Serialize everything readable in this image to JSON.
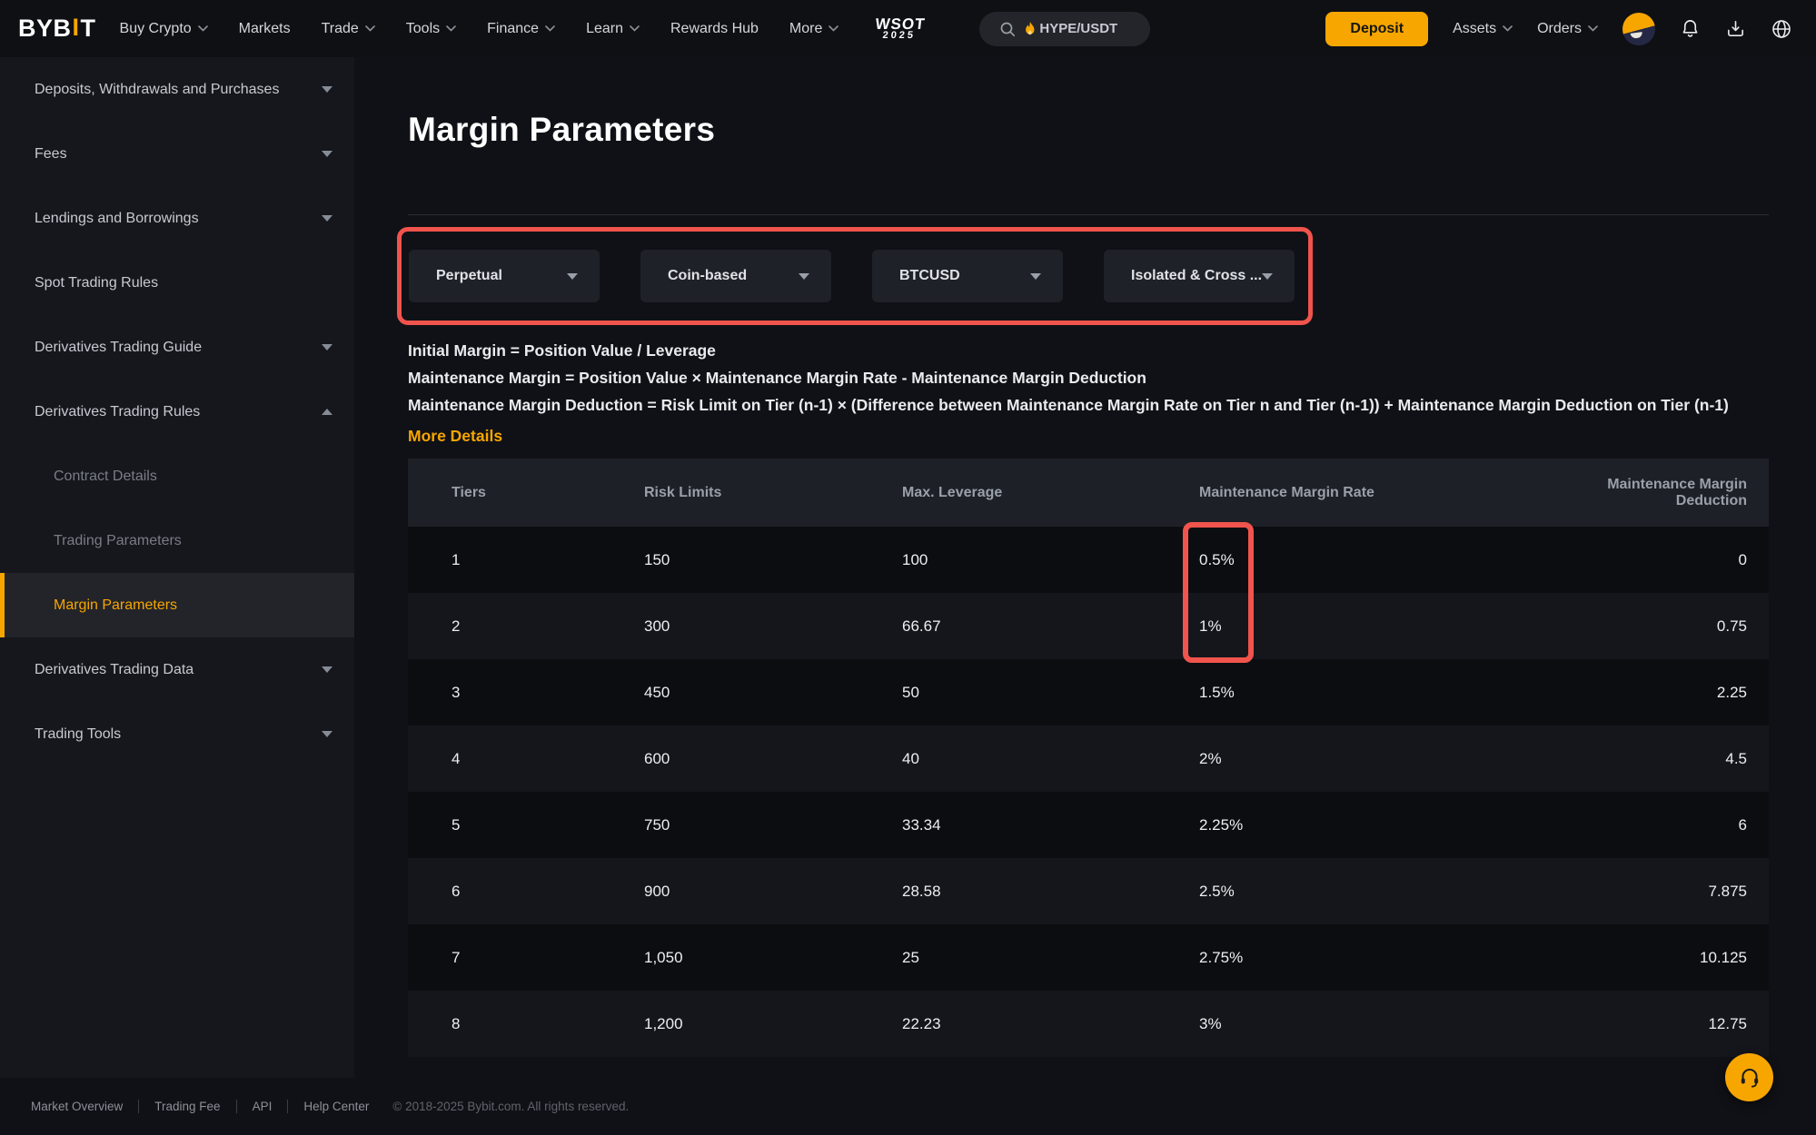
{
  "theme": {
    "accent_color": "#f7a600",
    "annotation_color": "#f0544c"
  },
  "nav": {
    "logo": {
      "part1": "BYB",
      "part2": "I",
      "part3": "T"
    },
    "items": [
      {
        "label": "Buy Crypto",
        "chevron": true
      },
      {
        "label": "Markets",
        "chevron": false
      },
      {
        "label": "Trade",
        "chevron": true
      },
      {
        "label": "Tools",
        "chevron": true
      },
      {
        "label": "Finance",
        "chevron": true
      },
      {
        "label": "Learn",
        "chevron": true
      },
      {
        "label": "Rewards Hub",
        "chevron": false
      },
      {
        "label": "More",
        "chevron": true
      }
    ],
    "event_logo": {
      "line1": "WSOT",
      "line2": "2025"
    },
    "search": {
      "value": "HYPE/USDT",
      "icon": "fire-icon"
    },
    "deposit_label": "Deposit",
    "account_items": [
      {
        "label": "Assets",
        "chevron": true
      },
      {
        "label": "Orders",
        "chevron": true
      }
    ],
    "icon_names": [
      "avatar",
      "bell-icon",
      "download-icon",
      "globe-icon"
    ]
  },
  "sidebar": {
    "items": [
      {
        "label": "Deposits, Withdrawals and Purchases",
        "type": "top",
        "chevron": "down",
        "active": false
      },
      {
        "label": "Fees",
        "type": "top",
        "chevron": "down",
        "active": false
      },
      {
        "label": "Lendings and Borrowings",
        "type": "top",
        "chevron": "down",
        "active": false
      },
      {
        "label": "Spot Trading Rules",
        "type": "top",
        "chevron": "none",
        "active": false
      },
      {
        "label": "Derivatives Trading Guide",
        "type": "top",
        "chevron": "down",
        "active": false
      },
      {
        "label": "Derivatives Trading Rules",
        "type": "top",
        "chevron": "up",
        "active": false
      },
      {
        "label": "Contract Details",
        "type": "sub",
        "chevron": "none",
        "active": false
      },
      {
        "label": "Trading Parameters",
        "type": "sub",
        "chevron": "none",
        "active": false
      },
      {
        "label": "Margin Parameters",
        "type": "sub",
        "chevron": "none",
        "active": true
      },
      {
        "label": "Derivatives Trading Data",
        "type": "top",
        "chevron": "down",
        "active": false
      },
      {
        "label": "Trading Tools",
        "type": "top",
        "chevron": "down",
        "active": false
      }
    ]
  },
  "main": {
    "title": "Margin Parameters",
    "filters": [
      {
        "value": "Perpetual"
      },
      {
        "value": "Coin-based"
      },
      {
        "value": "BTCUSD"
      },
      {
        "value": "Isolated & Cross ..."
      }
    ],
    "formulas": [
      "Initial Margin = Position Value / Leverage",
      "Maintenance Margin = Position Value × Maintenance Margin Rate - Maintenance Margin Deduction",
      "Maintenance Margin Deduction = Risk Limit on Tier (n-1) × (Difference between Maintenance Margin Rate on Tier n and Tier (n-1)) + Maintenance Margin Deduction on Tier (n-1)"
    ],
    "more_details_label": "More Details",
    "table": {
      "headers": [
        "Tiers",
        "Risk Limits",
        "Max. Leverage",
        "Maintenance Margin Rate",
        "Maintenance Margin Deduction"
      ],
      "rows": [
        [
          "1",
          "150",
          "100",
          "0.5%",
          "0"
        ],
        [
          "2",
          "300",
          "66.67",
          "1%",
          "0.75"
        ],
        [
          "3",
          "450",
          "50",
          "1.5%",
          "2.25"
        ],
        [
          "4",
          "600",
          "40",
          "2%",
          "4.5"
        ],
        [
          "5",
          "750",
          "33.34",
          "2.25%",
          "6"
        ],
        [
          "6",
          "900",
          "28.58",
          "2.5%",
          "7.875"
        ],
        [
          "7",
          "1,050",
          "25",
          "2.75%",
          "10.125"
        ],
        [
          "8",
          "1,200",
          "22.23",
          "3%",
          "12.75"
        ]
      ]
    }
  },
  "footer": {
    "links": [
      "Market Overview",
      "Trading Fee",
      "API",
      "Help Center"
    ],
    "copyright": "© 2018-2025 Bybit.com. All rights reserved."
  }
}
